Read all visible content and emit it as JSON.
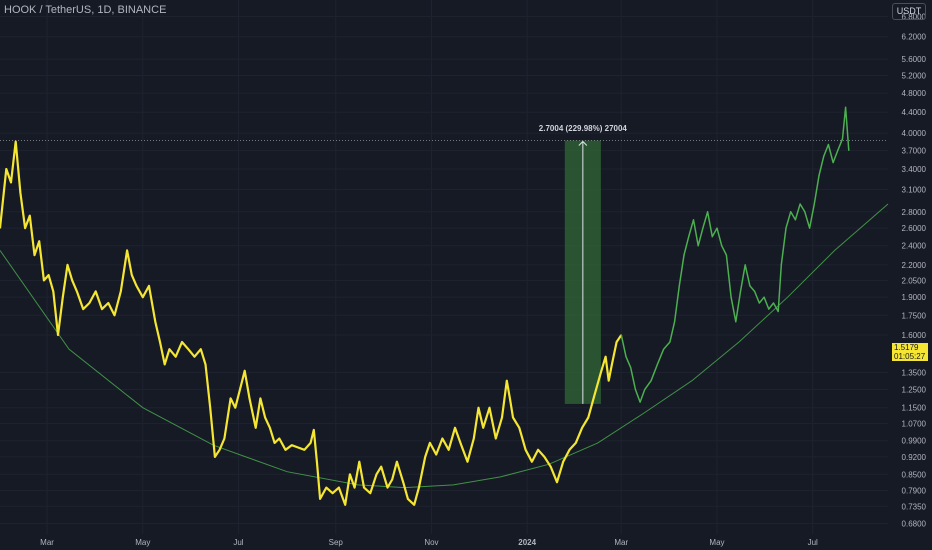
{
  "header": {
    "title": "HOOK / TetherUS, 1D, BINANCE",
    "unit_button": "USDT"
  },
  "last_price": {
    "value": "1.5179",
    "countdown": "01:05:27",
    "color": "#f5e634"
  },
  "measure": {
    "label": "2.7004 (229.98%) 27004",
    "fill": "#2e5f34",
    "start_price": 1.17,
    "end_price": 3.87
  },
  "colors": {
    "background": "#161a25",
    "grid": "#1f2330",
    "series1": "#f5e634",
    "series2": "#4caf50",
    "trend": "#4caf50"
  },
  "chart_data": {
    "type": "line",
    "title": "HOOK / TetherUS, 1D, BINANCE",
    "y_scale": "log",
    "ylim": [
      0.66,
      7.0
    ],
    "xlim": [
      "2023-01-30",
      "2024-08-18"
    ],
    "x_tick_labels": [
      {
        "date": "2023-03-01",
        "label": "Mar"
      },
      {
        "date": "2023-05-01",
        "label": "May"
      },
      {
        "date": "2023-07-01",
        "label": "Jul"
      },
      {
        "date": "2023-09-01",
        "label": "Sep"
      },
      {
        "date": "2023-11-01",
        "label": "Nov"
      },
      {
        "date": "2024-01-01",
        "label": "2024"
      },
      {
        "date": "2024-03-01",
        "label": "Mar"
      },
      {
        "date": "2024-05-01",
        "label": "May"
      },
      {
        "date": "2024-07-01",
        "label": "Jul"
      }
    ],
    "y_tick_labels": [
      "6.8000",
      "6.2000",
      "5.6000",
      "5.2000",
      "4.8000",
      "4.4000",
      "4.0000",
      "3.7000",
      "3.4000",
      "3.1000",
      "2.8000",
      "2.6000",
      "2.4000",
      "2.2000",
      "2.0500",
      "1.9000",
      "1.7500",
      "1.6000",
      "1.3500",
      "1.2500",
      "1.1500",
      "1.0700",
      "0.9900",
      "0.9200",
      "0.8500",
      "0.7900",
      "0.7350",
      "0.6800"
    ],
    "horizontal_line": 3.87,
    "series": [
      {
        "color": "#f5e634",
        "points": [
          [
            "2023-01-30",
            2.6
          ],
          [
            "2023-02-03",
            3.4
          ],
          [
            "2023-02-06",
            3.2
          ],
          [
            "2023-02-09",
            3.85
          ],
          [
            "2023-02-12",
            3.05
          ],
          [
            "2023-02-15",
            2.6
          ],
          [
            "2023-02-18",
            2.75
          ],
          [
            "2023-02-21",
            2.3
          ],
          [
            "2023-02-24",
            2.45
          ],
          [
            "2023-02-27",
            2.05
          ],
          [
            "2023-03-02",
            2.1
          ],
          [
            "2023-03-05",
            1.95
          ],
          [
            "2023-03-08",
            1.6
          ],
          [
            "2023-03-11",
            1.9
          ],
          [
            "2023-03-14",
            2.2
          ],
          [
            "2023-03-17",
            2.05
          ],
          [
            "2023-03-20",
            1.95
          ],
          [
            "2023-03-24",
            1.8
          ],
          [
            "2023-03-28",
            1.85
          ],
          [
            "2023-04-01",
            1.95
          ],
          [
            "2023-04-05",
            1.8
          ],
          [
            "2023-04-09",
            1.85
          ],
          [
            "2023-04-13",
            1.75
          ],
          [
            "2023-04-17",
            1.95
          ],
          [
            "2023-04-21",
            2.35
          ],
          [
            "2023-04-24",
            2.1
          ],
          [
            "2023-04-27",
            2.0
          ],
          [
            "2023-05-01",
            1.9
          ],
          [
            "2023-05-05",
            2.0
          ],
          [
            "2023-05-09",
            1.7
          ],
          [
            "2023-05-12",
            1.55
          ],
          [
            "2023-05-15",
            1.4
          ],
          [
            "2023-05-18",
            1.5
          ],
          [
            "2023-05-22",
            1.45
          ],
          [
            "2023-05-26",
            1.55
          ],
          [
            "2023-05-30",
            1.5
          ],
          [
            "2023-06-03",
            1.45
          ],
          [
            "2023-06-07",
            1.5
          ],
          [
            "2023-06-10",
            1.4
          ],
          [
            "2023-06-13",
            1.15
          ],
          [
            "2023-06-16",
            0.92
          ],
          [
            "2023-06-19",
            0.95
          ],
          [
            "2023-06-22",
            1.0
          ],
          [
            "2023-06-26",
            1.2
          ],
          [
            "2023-06-29",
            1.15
          ],
          [
            "2023-07-02",
            1.25
          ],
          [
            "2023-07-05",
            1.36
          ],
          [
            "2023-07-08",
            1.2
          ],
          [
            "2023-07-12",
            1.05
          ],
          [
            "2023-07-15",
            1.2
          ],
          [
            "2023-07-18",
            1.1
          ],
          [
            "2023-07-21",
            1.05
          ],
          [
            "2023-07-24",
            0.98
          ],
          [
            "2023-07-27",
            1.0
          ],
          [
            "2023-07-31",
            0.95
          ],
          [
            "2023-08-04",
            0.97
          ],
          [
            "2023-08-08",
            0.96
          ],
          [
            "2023-08-12",
            0.95
          ],
          [
            "2023-08-16",
            0.98
          ],
          [
            "2023-08-18",
            1.04
          ],
          [
            "2023-08-20",
            0.9
          ],
          [
            "2023-08-22",
            0.76
          ],
          [
            "2023-08-26",
            0.8
          ],
          [
            "2023-08-30",
            0.78
          ],
          [
            "2023-09-03",
            0.8
          ],
          [
            "2023-09-07",
            0.74
          ],
          [
            "2023-09-10",
            0.85
          ],
          [
            "2023-09-13",
            0.8
          ],
          [
            "2023-09-16",
            0.9
          ],
          [
            "2023-09-19",
            0.8
          ],
          [
            "2023-09-23",
            0.78
          ],
          [
            "2023-09-27",
            0.85
          ],
          [
            "2023-09-30",
            0.88
          ],
          [
            "2023-10-04",
            0.8
          ],
          [
            "2023-10-07",
            0.83
          ],
          [
            "2023-10-10",
            0.9
          ],
          [
            "2023-10-14",
            0.82
          ],
          [
            "2023-10-17",
            0.76
          ],
          [
            "2023-10-21",
            0.74
          ],
          [
            "2023-10-24",
            0.8
          ],
          [
            "2023-10-28",
            0.92
          ],
          [
            "2023-10-31",
            0.98
          ],
          [
            "2023-11-04",
            0.93
          ],
          [
            "2023-11-08",
            1.0
          ],
          [
            "2023-11-12",
            0.95
          ],
          [
            "2023-11-16",
            1.05
          ],
          [
            "2023-11-20",
            0.97
          ],
          [
            "2023-11-24",
            0.9
          ],
          [
            "2023-11-28",
            1.0
          ],
          [
            "2023-12-01",
            1.15
          ],
          [
            "2023-12-04",
            1.05
          ],
          [
            "2023-12-08",
            1.15
          ],
          [
            "2023-12-12",
            1.0
          ],
          [
            "2023-12-16",
            1.1
          ],
          [
            "2023-12-19",
            1.3
          ],
          [
            "2023-12-21",
            1.2
          ],
          [
            "2023-12-23",
            1.1
          ],
          [
            "2023-12-27",
            1.05
          ],
          [
            "2023-12-31",
            0.95
          ],
          [
            "2024-01-04",
            0.9
          ],
          [
            "2024-01-08",
            0.95
          ],
          [
            "2024-01-12",
            0.92
          ],
          [
            "2024-01-16",
            0.88
          ],
          [
            "2024-01-20",
            0.82
          ],
          [
            "2024-01-24",
            0.9
          ],
          [
            "2024-01-28",
            0.95
          ],
          [
            "2024-02-01",
            0.98
          ],
          [
            "2024-02-05",
            1.05
          ],
          [
            "2024-02-09",
            1.1
          ],
          [
            "2024-02-13",
            1.22
          ],
          [
            "2024-02-17",
            1.35
          ],
          [
            "2024-02-20",
            1.45
          ],
          [
            "2024-02-22",
            1.3
          ],
          [
            "2024-02-24",
            1.4
          ],
          [
            "2024-02-27",
            1.55
          ],
          [
            "2024-03-01",
            1.6
          ]
        ]
      },
      {
        "color": "#4caf50",
        "points": [
          [
            "2024-03-01",
            1.6
          ],
          [
            "2024-03-04",
            1.45
          ],
          [
            "2024-03-07",
            1.38
          ],
          [
            "2024-03-10",
            1.25
          ],
          [
            "2024-03-13",
            1.18
          ],
          [
            "2024-03-16",
            1.25
          ],
          [
            "2024-03-20",
            1.3
          ],
          [
            "2024-03-24",
            1.4
          ],
          [
            "2024-03-28",
            1.5
          ],
          [
            "2024-04-01",
            1.55
          ],
          [
            "2024-04-04",
            1.7
          ],
          [
            "2024-04-07",
            2.0
          ],
          [
            "2024-04-10",
            2.3
          ],
          [
            "2024-04-13",
            2.5
          ],
          [
            "2024-04-16",
            2.7
          ],
          [
            "2024-04-19",
            2.4
          ],
          [
            "2024-04-22",
            2.6
          ],
          [
            "2024-04-25",
            2.8
          ],
          [
            "2024-04-28",
            2.5
          ],
          [
            "2024-05-01",
            2.6
          ],
          [
            "2024-05-04",
            2.4
          ],
          [
            "2024-05-07",
            2.3
          ],
          [
            "2024-05-10",
            1.9
          ],
          [
            "2024-05-13",
            1.7
          ],
          [
            "2024-05-16",
            1.95
          ],
          [
            "2024-05-19",
            2.2
          ],
          [
            "2024-05-22",
            2.0
          ],
          [
            "2024-05-25",
            1.95
          ],
          [
            "2024-05-28",
            1.85
          ],
          [
            "2024-05-31",
            1.9
          ],
          [
            "2024-06-03",
            1.8
          ],
          [
            "2024-06-06",
            1.85
          ],
          [
            "2024-06-09",
            1.78
          ],
          [
            "2024-06-11",
            2.2
          ],
          [
            "2024-06-14",
            2.6
          ],
          [
            "2024-06-17",
            2.8
          ],
          [
            "2024-06-20",
            2.7
          ],
          [
            "2024-06-23",
            2.9
          ],
          [
            "2024-06-26",
            2.8
          ],
          [
            "2024-06-29",
            2.6
          ],
          [
            "2024-07-02",
            2.9
          ],
          [
            "2024-07-05",
            3.3
          ],
          [
            "2024-07-08",
            3.6
          ],
          [
            "2024-07-11",
            3.8
          ],
          [
            "2024-07-14",
            3.5
          ],
          [
            "2024-07-17",
            3.7
          ],
          [
            "2024-07-20",
            3.9
          ],
          [
            "2024-07-22",
            4.5
          ],
          [
            "2024-07-24",
            3.7
          ]
        ]
      }
    ],
    "trendline": {
      "color": "#4caf50",
      "points": [
        [
          "2023-01-30",
          2.35
        ],
        [
          "2023-03-15",
          1.5
        ],
        [
          "2023-05-01",
          1.15
        ],
        [
          "2023-06-15",
          0.97
        ],
        [
          "2023-08-01",
          0.86
        ],
        [
          "2023-09-15",
          0.81
        ],
        [
          "2023-10-15",
          0.8
        ],
        [
          "2023-11-15",
          0.81
        ],
        [
          "2023-12-15",
          0.84
        ],
        [
          "2024-01-15",
          0.89
        ],
        [
          "2024-02-15",
          0.98
        ],
        [
          "2024-03-15",
          1.12
        ],
        [
          "2024-04-15",
          1.3
        ],
        [
          "2024-05-15",
          1.55
        ],
        [
          "2024-06-15",
          1.9
        ],
        [
          "2024-07-15",
          2.35
        ],
        [
          "2024-08-18",
          2.9
        ]
      ]
    }
  }
}
